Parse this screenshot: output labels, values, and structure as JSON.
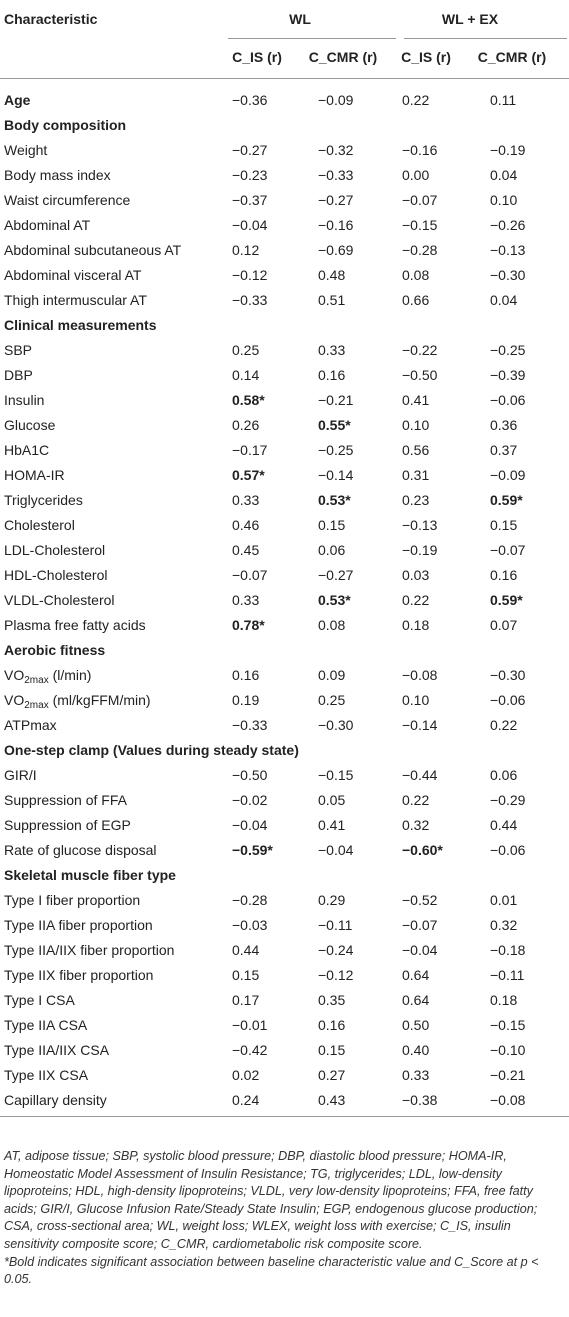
{
  "table": {
    "header": {
      "characteristic": "Characteristic",
      "groups": [
        "WL",
        "WL + EX"
      ],
      "columns": [
        "C_IS (r)",
        "C_CMR (r)",
        "C_IS (r)",
        "C_CMR (r)"
      ]
    },
    "rows": [
      {
        "label": "Age",
        "heading": true,
        "cells": [
          "−0.36",
          "−0.09",
          "0.22",
          "0.11"
        ]
      },
      {
        "label": "Body composition",
        "heading": true
      },
      {
        "label": "Weight",
        "cells": [
          "−0.27",
          "−0.32",
          "−0.16",
          "−0.19"
        ]
      },
      {
        "label": "Body mass index",
        "cells": [
          "−0.23",
          "−0.33",
          "0.00",
          "0.04"
        ]
      },
      {
        "label": "Waist circumference",
        "cells": [
          "−0.37",
          "−0.27",
          "−0.07",
          "0.10"
        ]
      },
      {
        "label": "Abdominal AT",
        "cells": [
          "−0.04",
          "−0.16",
          "−0.15",
          "−0.26"
        ]
      },
      {
        "label": "Abdominal subcutaneous AT",
        "cells": [
          "0.12",
          "−0.69",
          "−0.28",
          "−0.13"
        ]
      },
      {
        "label": "Abdominal visceral AT",
        "cells": [
          "−0.12",
          "0.48",
          "0.08",
          "−0.30"
        ]
      },
      {
        "label": "Thigh intermuscular AT",
        "cells": [
          "−0.33",
          "0.51",
          "0.66",
          "0.04"
        ]
      },
      {
        "label": "Clinical measurements",
        "heading": true
      },
      {
        "label": "SBP",
        "cells": [
          "0.25",
          "0.33",
          "−0.22",
          "−0.25"
        ]
      },
      {
        "label": "DBP",
        "cells": [
          "0.14",
          "0.16",
          "−0.50",
          "−0.39"
        ]
      },
      {
        "label": "Insulin",
        "cells": [
          {
            "text": "0.58*",
            "bold": true
          },
          "−0.21",
          "0.41",
          "−0.06"
        ]
      },
      {
        "label": "Glucose",
        "cells": [
          "0.26",
          {
            "text": "0.55*",
            "bold": true
          },
          "0.10",
          "0.36"
        ]
      },
      {
        "label": "HbA1C",
        "cells": [
          "−0.17",
          "−0.25",
          "0.56",
          "0.37"
        ]
      },
      {
        "label": "HOMA-IR",
        "cells": [
          {
            "text": "0.57*",
            "bold": true
          },
          "−0.14",
          "0.31",
          "−0.09"
        ]
      },
      {
        "label": "Triglycerides",
        "cells": [
          "0.33",
          {
            "text": "0.53*",
            "bold": true
          },
          "0.23",
          {
            "text": "0.59*",
            "bold": true
          }
        ]
      },
      {
        "label": "Cholesterol",
        "cells": [
          "0.46",
          "0.15",
          "−0.13",
          "0.15"
        ]
      },
      {
        "label": "LDL-Cholesterol",
        "cells": [
          "0.45",
          "0.06",
          "−0.19",
          "−0.07"
        ]
      },
      {
        "label": "HDL-Cholesterol",
        "cells": [
          "−0.07",
          "−0.27",
          "0.03",
          "0.16"
        ]
      },
      {
        "label": "VLDL-Cholesterol",
        "cells": [
          "0.33",
          {
            "text": "0.53*",
            "bold": true
          },
          "0.22",
          {
            "text": "0.59*",
            "bold": true
          }
        ]
      },
      {
        "label": "Plasma free fatty acids",
        "cells": [
          {
            "text": "0.78*",
            "bold": true
          },
          "0.08",
          "0.18",
          "0.07"
        ]
      },
      {
        "label": "Aerobic fitness",
        "heading": true
      },
      {
        "label": {
          "text": "VO",
          "sub": "2max",
          "after": " (l/min)"
        },
        "cells": [
          "0.16",
          "0.09",
          "−0.08",
          "−0.30"
        ]
      },
      {
        "label": {
          "text": "VO",
          "sub": "2max",
          "after": " (ml/kgFFM/min)"
        },
        "cells": [
          "0.19",
          "0.25",
          "0.10",
          "−0.06"
        ]
      },
      {
        "label": "ATPmax",
        "cells": [
          "−0.33",
          "−0.30",
          "−0.14",
          "0.22"
        ]
      },
      {
        "label": "One-step clamp (Values during steady state)",
        "heading": true
      },
      {
        "label": "GIR/I",
        "cells": [
          "−0.50",
          "−0.15",
          "−0.44",
          "0.06"
        ]
      },
      {
        "label": "Suppression of FFA",
        "cells": [
          "−0.02",
          "0.05",
          "0.22",
          "−0.29"
        ]
      },
      {
        "label": "Suppression of EGP",
        "cells": [
          "−0.04",
          "0.41",
          "0.32",
          "0.44"
        ]
      },
      {
        "label": "Rate of glucose disposal",
        "cells": [
          {
            "text": "−0.59*",
            "bold": true
          },
          "−0.04",
          {
            "text": "−0.60*",
            "bold": true
          },
          "−0.06"
        ]
      },
      {
        "label": "Skeletal muscle fiber type",
        "heading": true
      },
      {
        "label": "Type I fiber proportion",
        "cells": [
          "−0.28",
          "0.29",
          "−0.52",
          "0.01"
        ]
      },
      {
        "label": "Type IIA fiber proportion",
        "cells": [
          "−0.03",
          "−0.11",
          "−0.07",
          "0.32"
        ]
      },
      {
        "label": "Type IIA/IIX fiber proportion",
        "cells": [
          "0.44",
          "−0.24",
          "−0.04",
          "−0.18"
        ]
      },
      {
        "label": "Type IIX fiber proportion",
        "cells": [
          "0.15",
          "−0.12",
          "0.64",
          "−0.11"
        ]
      },
      {
        "label": "Type I CSA",
        "cells": [
          "0.17",
          "0.35",
          "0.64",
          "0.18"
        ]
      },
      {
        "label": "Type IIA CSA",
        "cells": [
          "−0.01",
          "0.16",
          "0.50",
          "−0.15"
        ]
      },
      {
        "label": "Type IIA/IIX CSA",
        "cells": [
          "−0.42",
          "0.15",
          "0.40",
          "−0.10"
        ]
      },
      {
        "label": "Type IIX CSA",
        "cells": [
          "0.02",
          "0.27",
          "0.33",
          "−0.21"
        ]
      },
      {
        "label": "Capillary density",
        "cells": [
          "0.24",
          "0.43",
          "−0.38",
          "−0.08"
        ]
      }
    ]
  },
  "footnote": [
    "AT, adipose tissue; SBP, systolic blood pressure; DBP, diastolic blood pressure; HOMA-IR, Homeostatic Model Assessment of Insulin Resistance; TG, triglycerides; LDL, low-density lipoproteins; HDL, high-density lipoproteins; VLDL, very low-density lipoproteins; FFA, free fatty acids; GIR/I, Glucose Infusion Rate/Steady State Insulin; EGP, endogenous glucose production; CSA, cross-sectional area; WL, weight loss; WLEX, weight loss with exercise; C_IS, insulin sensitivity composite score; C_CMR, cardiometabolic risk composite score.",
    "*Bold indicates significant association between baseline characteristic value and C_Score at p < 0.05."
  ]
}
